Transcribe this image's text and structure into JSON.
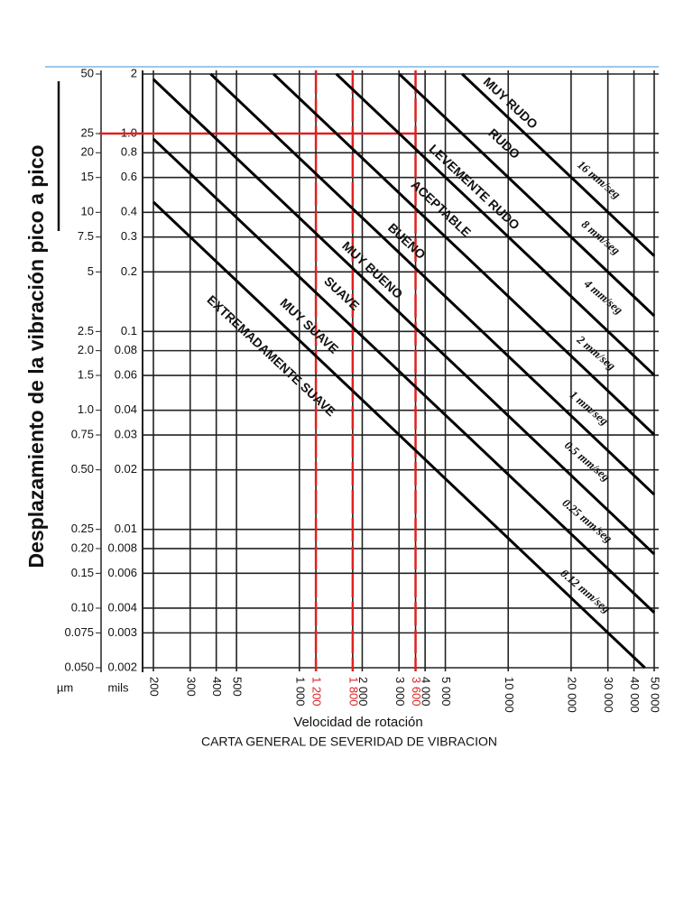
{
  "chart_data": {
    "type": "line",
    "title": "CARTA GENERAL DE SEVERIDAD DE VIBRACION",
    "xlabel": "Velocidad de rotación",
    "ylabel": "Desplazamiento de la vibración pico a pico",
    "ylabel_unit": "mils",
    "y2label_unit": "µm",
    "xscale": "log",
    "yscale": "log",
    "grid": true,
    "xlim": [
      200,
      50000
    ],
    "xticks": [
      200,
      300,
      400,
      500,
      {
        "value": 1000,
        "label": "1 000"
      },
      {
        "value": 1200,
        "label": "1 200"
      },
      {
        "value": 1800,
        "label": "1 800"
      },
      {
        "value": 2000,
        "label": "2 000"
      },
      {
        "value": 3000,
        "label": "3 000"
      },
      {
        "value": 3600,
        "label": "3 600"
      },
      {
        "value": 4000,
        "label": "4 000"
      },
      {
        "value": 5000,
        "label": "5 000"
      },
      {
        "value": 10000,
        "label": "10 000"
      },
      {
        "value": 20000,
        "label": "20 000"
      },
      {
        "value": 30000,
        "label": "30 000"
      },
      {
        "value": 40000,
        "label": "40 000"
      },
      {
        "value": 50000,
        "label": "50 000"
      }
    ],
    "ylim": [
      0.002,
      2
    ],
    "yticks": [
      2,
      {
        "value": 1,
        "label": "1.0"
      },
      0.8,
      0.6,
      0.4,
      0.3,
      0.2,
      0.1,
      0.08,
      0.06,
      0.04,
      0.03,
      0.02,
      0.01,
      0.008,
      0.006,
      0.004,
      0.003,
      0.002
    ],
    "y2lim": [
      0.05,
      50
    ],
    "y2ticks": [
      50,
      25,
      20,
      15,
      10,
      7.5,
      5,
      2.5,
      {
        "value": 2,
        "label": "2.0"
      },
      1.5,
      {
        "value": 1,
        "label": "1.0"
      },
      0.75,
      {
        "value": 0.5,
        "label": "0.50"
      },
      0.25,
      {
        "value": 0.2,
        "label": "0.20"
      },
      0.15,
      {
        "value": 0.1,
        "label": "0.10"
      },
      0.075,
      {
        "value": 0.05,
        "label": "0.050"
      }
    ],
    "reference_x": [
      1200,
      1800,
      3600
    ],
    "reference_y": 1,
    "reference_color": "#e02020",
    "series": [
      {
        "name": "16 mm/seg",
        "color": "#000000",
        "x": [
          6015,
          50000
        ],
        "values": [
          2,
          0.241
        ]
      },
      {
        "name": "8 mm/seg",
        "color": "#000000",
        "x": [
          3008,
          50000
        ],
        "values": [
          2,
          0.12
        ]
      },
      {
        "name": "4 mm/seg",
        "color": "#000000",
        "x": [
          1504,
          50000
        ],
        "values": [
          2,
          0.0602
        ]
      },
      {
        "name": "2 mm/seg",
        "color": "#000000",
        "x": [
          752,
          50000
        ],
        "values": [
          2,
          0.0301
        ]
      },
      {
        "name": "1 mm/seg",
        "color": "#000000",
        "x": [
          376,
          50000
        ],
        "values": [
          2,
          0.015
        ]
      },
      {
        "name": "0.5 mm/seg",
        "color": "#000000",
        "x": [
          200,
          50000
        ],
        "values": [
          1.88,
          0.0075
        ]
      },
      {
        "name": "0.25 mm/seg",
        "color": "#000000",
        "x": [
          200,
          50000
        ],
        "values": [
          0.94,
          0.0038
        ]
      },
      {
        "name": "0.12 mm/seg",
        "color": "#000000",
        "x": [
          200,
          45100
        ],
        "values": [
          0.451,
          0.002
        ]
      }
    ],
    "zones": [
      "MUY RUDO",
      "RUDO",
      "LEVEMENTE RUDO",
      "ACEPTABLE",
      "BUENO",
      "MUY BUENO",
      "SUAVE",
      "MUY SUAVE",
      "EXTREMADAMENTE SUAVE"
    ]
  }
}
